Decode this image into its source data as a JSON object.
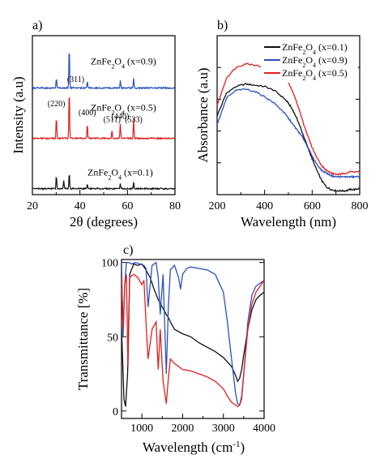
{
  "chart_data": [
    {
      "type": "line",
      "panel_label": "a)",
      "xlabel": "2θ (degrees)",
      "ylabel": "Intensity (a.u)",
      "xlim": [
        20,
        80
      ],
      "xticks": [
        "20",
        "40",
        "60",
        "80"
      ],
      "y_tick_labels": "none",
      "legend": "none",
      "grid": false,
      "series": [
        {
          "label_text": "ZnFe2O4 (x=0.9)",
          "color": "#2a50c0",
          "offset": 2.0,
          "peaks": [
            [
              30.1,
              0.18
            ],
            [
              35.5,
              0.78
            ],
            [
              43.1,
              0.12
            ],
            [
              57.0,
              0.14
            ],
            [
              62.6,
              0.18
            ]
          ]
        },
        {
          "label_text": "ZnFe2O4 (x=0.5)",
          "color": "#e02020",
          "offset": 1.05,
          "peaks": [
            [
              30.1,
              0.4
            ],
            [
              35.5,
              0.92
            ],
            [
              43.1,
              0.26
            ],
            [
              53.5,
              0.16
            ],
            [
              57.0,
              0.28
            ],
            [
              62.6,
              0.38
            ]
          ],
          "peak_labels": [
            {
              "x": 30.1,
              "text": "(220)"
            },
            {
              "x": 35.5,
              "text": "(311)"
            },
            {
              "x": 43.1,
              "text": "(400)"
            },
            {
              "x": 53.5,
              "text": "(511)"
            },
            {
              "x": 57.0,
              "text": "(440)"
            },
            {
              "x": 62.6,
              "text": "(533)"
            }
          ]
        },
        {
          "label_text": "ZnFe2O4 (x=0.1)",
          "color": "#111111",
          "offset": 0.1,
          "peaks": [
            [
              30.1,
              0.24
            ],
            [
              33.2,
              0.16
            ],
            [
              35.5,
              0.3
            ],
            [
              43.1,
              0.08
            ],
            [
              57.0,
              0.1
            ],
            [
              62.6,
              0.12
            ]
          ]
        }
      ]
    },
    {
      "type": "line",
      "panel_label": "b)",
      "xlabel": "Wavelength (nm)",
      "ylabel": "Absorbance (a.u)",
      "xlim": [
        200,
        800
      ],
      "xticks": [
        "200",
        "400",
        "600",
        "800"
      ],
      "y_tick_labels": "none",
      "legend": "top-right",
      "grid": false,
      "series": [
        {
          "name": "ZnFe2O4 (x=0.1)",
          "color": "#111111",
          "x": [
            200,
            240,
            280,
            320,
            360,
            400,
            440,
            480,
            500,
            520,
            540,
            560,
            580,
            600,
            620,
            640,
            660,
            680,
            700,
            720,
            740,
            760,
            780,
            800
          ],
          "y": [
            0.62,
            0.8,
            0.85,
            0.87,
            0.86,
            0.85,
            0.82,
            0.76,
            0.72,
            0.66,
            0.58,
            0.48,
            0.38,
            0.28,
            0.19,
            0.11,
            0.06,
            0.04,
            0.03,
            0.03,
            0.03,
            0.04,
            0.04,
            0.05
          ]
        },
        {
          "name": "ZnFe2O4 (x=0.9)",
          "color": "#2a50c0",
          "x": [
            200,
            240,
            280,
            320,
            360,
            400,
            440,
            480,
            500,
            520,
            540,
            560,
            580,
            600,
            620,
            640,
            660,
            680,
            700,
            720,
            740,
            760,
            780,
            800
          ],
          "y": [
            0.55,
            0.76,
            0.82,
            0.83,
            0.81,
            0.77,
            0.72,
            0.65,
            0.6,
            0.55,
            0.5,
            0.45,
            0.38,
            0.3,
            0.24,
            0.19,
            0.17,
            0.15,
            0.14,
            0.14,
            0.14,
            0.14,
            0.14,
            0.14
          ]
        },
        {
          "name": "ZnFe2O4 (x=0.5)",
          "color": "#e02020",
          "x": [
            200,
            240,
            280,
            320,
            360,
            400,
            440,
            480,
            500,
            520,
            540,
            560,
            580,
            600,
            620,
            640,
            660,
            680,
            700,
            720,
            740,
            760,
            780,
            800
          ],
          "y": [
            0.7,
            0.92,
            1.0,
            1.03,
            1.02,
            1.0,
            0.98,
            0.95,
            0.88,
            0.8,
            0.7,
            0.58,
            0.47,
            0.37,
            0.29,
            0.23,
            0.19,
            0.17,
            0.16,
            0.16,
            0.17,
            0.18,
            0.18,
            0.18
          ]
        }
      ]
    },
    {
      "type": "line",
      "panel_label": "c)",
      "xlabel": "Wavelength (cm",
      "xlabel_superscript": "-1",
      "xlabel_close": ")",
      "ylabel": "Transmittance [%]",
      "xlim": [
        500,
        4000
      ],
      "ylim": [
        -5,
        102
      ],
      "xticks": [
        "1000",
        "2000",
        "3000",
        "4000"
      ],
      "yticks": [
        "0",
        "50",
        "100"
      ],
      "legend": "none",
      "grid": false,
      "series": [
        {
          "color": "#111111",
          "x": [
            450,
            520,
            560,
            600,
            650,
            700,
            800,
            900,
            1000,
            1100,
            1200,
            1300,
            1400,
            1500,
            1600,
            1650,
            1700,
            1800,
            2000,
            2200,
            2400,
            2600,
            2800,
            3000,
            3200,
            3300,
            3350,
            3400,
            3450,
            3500,
            3600,
            3700,
            3800,
            3900,
            4000
          ],
          "y": [
            98,
            40,
            8,
            3,
            25,
            92,
            99,
            98,
            99,
            95,
            90,
            82,
            75,
            70,
            65,
            63,
            60,
            55,
            52,
            50,
            46,
            43,
            40,
            36,
            30,
            24,
            20,
            22,
            28,
            38,
            55,
            68,
            75,
            78,
            80
          ]
        },
        {
          "color": "#2a50c0",
          "x": [
            450,
            500,
            540,
            580,
            620,
            680,
            750,
            850,
            950,
            1050,
            1100,
            1150,
            1250,
            1350,
            1400,
            1450,
            1520,
            1600,
            1650,
            1700,
            1800,
            1900,
            1950,
            2000,
            2100,
            2200,
            2400,
            2600,
            2800,
            3000,
            3100,
            3200,
            3300,
            3350,
            3400,
            3450,
            3500,
            3600,
            3700,
            3800,
            3900,
            4000
          ],
          "y": [
            98,
            100,
            50,
            85,
            100,
            100,
            99,
            100,
            99,
            98,
            96,
            70,
            98,
            100,
            90,
            65,
            92,
            25,
            70,
            95,
            98,
            90,
            82,
            92,
            96,
            97,
            96,
            95,
            92,
            80,
            60,
            35,
            12,
            5,
            4,
            8,
            25,
            60,
            78,
            84,
            86,
            88
          ]
        },
        {
          "color": "#e02020",
          "x": [
            450,
            500,
            540,
            580,
            620,
            660,
            700,
            800,
            900,
            1000,
            1050,
            1100,
            1150,
            1250,
            1350,
            1400,
            1450,
            1520,
            1600,
            1650,
            1700,
            1800,
            2000,
            2200,
            2400,
            2600,
            2800,
            3000,
            3100,
            3200,
            3300,
            3350,
            3400,
            3450,
            3500,
            3600,
            3700,
            3800,
            3900,
            4000
          ],
          "y": [
            95,
            90,
            55,
            85,
            92,
            30,
            90,
            92,
            90,
            85,
            88,
            60,
            35,
            55,
            60,
            28,
            55,
            20,
            5,
            22,
            35,
            32,
            28,
            27,
            25,
            23,
            20,
            15,
            10,
            6,
            4,
            3,
            4,
            10,
            25,
            55,
            72,
            80,
            84,
            88
          ]
        }
      ]
    }
  ]
}
